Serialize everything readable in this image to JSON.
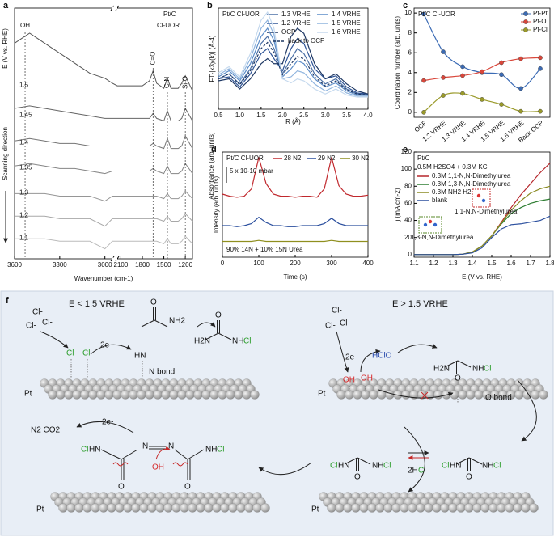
{
  "chart_data": [
    {
      "type": "line",
      "panel": "a",
      "title": "Pt/C",
      "subtitle": "Cl-UOR",
      "x_label": "Wavenumber (cm-1)",
      "y_label": "E (V vs. RHE)",
      "y2_label": "Absorbance (arb. units)",
      "side_label": "Scanning direction",
      "legend": "inline",
      "x": [
        3600,
        3500,
        3400,
        3300,
        3200,
        3100,
        3000,
        2950,
        2150,
        1900,
        1800,
        1700,
        1650,
        1600,
        1500,
        1450,
        1400,
        1300,
        1250,
        1200,
        1100
      ],
      "xlim": [
        3600,
        1100
      ],
      "xbreak": [
        2950,
        2150
      ],
      "xticks": [
        3600,
        3300,
        3000,
        2100,
        1800,
        1500,
        1200
      ],
      "ylim": [
        0,
        10
      ],
      "series": [
        {
          "name": "1.5",
          "color": "#555555",
          "values": [
            8.6,
            9.0,
            8.6,
            8.2,
            7.8,
            7.4,
            7.2,
            7.0,
            6.9,
            6.9,
            6.9,
            7.1,
            7.5,
            7.0,
            6.8,
            7.2,
            6.8,
            6.8,
            7.0,
            7.3,
            6.7
          ]
        },
        {
          "name": "1.45",
          "color": "#656565",
          "values": [
            6.0,
            6.1,
            6.0,
            5.9,
            5.8,
            5.7,
            5.6,
            5.6,
            5.6,
            5.6,
            5.6,
            5.6,
            5.8,
            5.6,
            5.5,
            5.9,
            5.5,
            5.5,
            5.6,
            6.0,
            5.5
          ]
        },
        {
          "name": "1.4",
          "color": "#757575",
          "values": [
            4.7,
            4.8,
            4.7,
            4.6,
            4.6,
            4.5,
            4.5,
            4.5,
            4.5,
            4.5,
            4.5,
            4.5,
            4.6,
            4.5,
            4.4,
            4.8,
            4.4,
            4.4,
            4.5,
            4.9,
            4.4
          ]
        },
        {
          "name": "1.35",
          "color": "#858585",
          "values": [
            3.7,
            3.8,
            3.7,
            3.6,
            3.6,
            3.5,
            3.4,
            3.5,
            3.5,
            3.5,
            3.5,
            3.5,
            3.6,
            3.5,
            3.4,
            3.7,
            3.4,
            3.4,
            3.5,
            3.8,
            3.4
          ]
        },
        {
          "name": "1.3",
          "color": "#969696",
          "values": [
            2.6,
            2.6,
            2.6,
            2.5,
            2.5,
            2.5,
            2.3,
            2.5,
            2.5,
            2.5,
            2.5,
            2.5,
            2.5,
            2.5,
            2.4,
            2.6,
            2.4,
            2.4,
            2.5,
            2.7,
            2.4
          ]
        },
        {
          "name": "1.2",
          "color": "#a8a8a8",
          "values": [
            1.7,
            1.7,
            1.7,
            1.6,
            1.6,
            1.6,
            1.3,
            1.6,
            1.6,
            1.6,
            1.6,
            1.6,
            1.6,
            1.6,
            1.5,
            1.7,
            1.5,
            1.5,
            1.6,
            1.8,
            1.5
          ]
        },
        {
          "name": "1.1",
          "color": "#bbbbbb",
          "values": [
            0.8,
            0.8,
            0.8,
            0.7,
            0.7,
            0.7,
            0.4,
            0.7,
            0.7,
            0.7,
            0.7,
            0.7,
            0.7,
            0.7,
            0.6,
            0.8,
            0.6,
            0.6,
            0.7,
            0.9,
            0.6
          ]
        }
      ],
      "annotations": [
        {
          "text": "OH",
          "x": 3530
        },
        {
          "text": "C=O",
          "x": 1650
        },
        {
          "text": "C-N",
          "x": 1450
        },
        {
          "text": "Si-O",
          "x": 1200
        }
      ]
    },
    {
      "type": "line",
      "panel": "b",
      "title": "Pt/C Cl-UOR",
      "x_label": "R (Å)",
      "y_label": "FT-|k3χ(k)| (Å-4)",
      "legend": "upper center",
      "x": [
        0.5,
        0.75,
        1.0,
        1.25,
        1.5,
        1.65,
        1.8,
        2.0,
        2.2,
        2.35,
        2.5,
        2.75,
        3.0,
        3.25,
        3.5,
        3.75,
        4.0
      ],
      "xlim": [
        0.5,
        4.0
      ],
      "xticks": [
        0.5,
        {
          "value": 1,
          "label": "1.0"
        },
        1.5,
        {
          "value": 2,
          "label": "2.0"
        },
        2.5,
        {
          "value": 3,
          "label": "3.0"
        },
        3.5,
        {
          "value": 4,
          "label": "4.0"
        }
      ],
      "ylim": [
        0,
        10
      ],
      "series": [
        {
          "name": "1.3 VRHE",
          "color": "#4a6fa5",
          "values": [
            3,
            3.5,
            2.5,
            4,
            6.5,
            7.2,
            6,
            3.5,
            5,
            6,
            5.5,
            3.5,
            2.5,
            3,
            2,
            1.5,
            1.5
          ]
        },
        {
          "name": "1.2 VRHE",
          "color": "#2f5597",
          "values": [
            3,
            3.2,
            2.2,
            3.5,
            5.5,
            6,
            5,
            3.8,
            6,
            7,
            6.5,
            4,
            3,
            3.3,
            2.2,
            1.6,
            1.5
          ]
        },
        {
          "name": "OCP",
          "color": "#1f3864",
          "values": [
            2.8,
            3,
            2,
            3,
            4.5,
            5,
            4.5,
            4.5,
            7.2,
            8,
            7.5,
            4.5,
            3,
            3.5,
            2.5,
            1.8,
            1.5
          ]
        },
        {
          "name": "1.4 VRHE",
          "color": "#5b8cc8",
          "values": [
            3.2,
            3.8,
            2.8,
            4.5,
            7.2,
            8,
            6.8,
            3.2,
            4,
            4.8,
            4.5,
            3,
            2.2,
            2.6,
            1.8,
            1.4,
            1.4
          ]
        },
        {
          "name": "1.5 VRHE",
          "color": "#8fb4de",
          "values": [
            3.4,
            4,
            3,
            5,
            8,
            8.8,
            7.4,
            3,
            3.2,
            3.8,
            3.6,
            2.5,
            1.8,
            2.3,
            1.6,
            1.3,
            1.3
          ]
        },
        {
          "name": "1.6 VRHE",
          "color": "#c5d9ee",
          "values": [
            3.6,
            4.2,
            3.2,
            5.5,
            8.8,
            9.6,
            8,
            3,
            2.6,
            3,
            2.8,
            2,
            1.5,
            2,
            1.4,
            1.2,
            1.2
          ]
        },
        {
          "name": "back  to OCP",
          "color": "#1f3864",
          "dash": true,
          "values": [
            3,
            3.5,
            2.4,
            3.8,
            6,
            6.6,
            5.6,
            3.4,
            4.5,
            5.2,
            5,
            3.2,
            2.3,
            2.8,
            1.9,
            1.5,
            1.4
          ]
        }
      ]
    },
    {
      "type": "line",
      "panel": "c",
      "title": "Pt/C Cl-UOR",
      "y_label": "Coordination number (arb. units)",
      "legend": "upper right",
      "markers": true,
      "smooth": true,
      "categories": [
        "OCP",
        "1.2 VRHE",
        "1.3 VRHE",
        "1.4 VRHE",
        "1.5 VRHE",
        "1.6 VRHE",
        "Back OCP"
      ],
      "ylim": [
        -0.5,
        10.5
      ],
      "yticks": [
        0,
        2,
        4,
        6,
        8,
        10
      ],
      "series": [
        {
          "name": "Pt-Pt",
          "color": "#3b6bb5",
          "values": [
            9.9,
            6.1,
            4.6,
            4.0,
            3.8,
            2.4,
            4.4
          ]
        },
        {
          "name": "Pt-O",
          "color": "#d9473b",
          "values": [
            3.2,
            3.5,
            3.7,
            4.1,
            5.0,
            5.4,
            5.5
          ]
        },
        {
          "name": "Pt-Cl",
          "color": "#9a9a2a",
          "values": [
            0,
            1.7,
            1.9,
            1.3,
            0.8,
            0.1,
            0.1
          ]
        }
      ]
    },
    {
      "type": "line",
      "panel": "d",
      "title": "Pt/C Cl-UOR",
      "x_label": "Time (s)",
      "y_label": "Intensity (arb. units)",
      "legend": "top",
      "scale_bar": "5 x 10-10 mbar",
      "note": "90% 14N + 10% 15N Urea",
      "x": [
        0,
        20,
        40,
        60,
        80,
        100,
        120,
        140,
        160,
        180,
        200,
        220,
        240,
        260,
        280,
        300,
        320,
        340,
        360,
        380,
        400
      ],
      "xlim": [
        0,
        400
      ],
      "xticks": [
        0,
        100,
        200,
        300,
        400
      ],
      "ylim": [
        0,
        10
      ],
      "series": [
        {
          "name": "28 N2",
          "color": "#c0282d",
          "values": [
            6,
            5.8,
            5.7,
            5.8,
            6.5,
            9.5,
            7,
            6,
            5.8,
            5.8,
            5.7,
            5.8,
            5.8,
            5.7,
            6.5,
            9.5,
            6.8,
            6,
            5.8,
            5.8,
            5.9
          ]
        },
        {
          "name": "29 N2",
          "color": "#2b4f9e",
          "values": [
            3,
            3,
            2.9,
            3,
            3.2,
            3.8,
            3.3,
            3,
            3,
            2.9,
            2.9,
            3,
            3,
            3,
            3.2,
            3.7,
            3.2,
            3,
            3,
            3,
            3
          ]
        },
        {
          "name": "30 N2",
          "color": "#8f8f1f",
          "values": [
            1.5,
            1.5,
            1.5,
            1.5,
            1.5,
            1.6,
            1.5,
            1.5,
            1.5,
            1.5,
            1.5,
            1.5,
            1.5,
            1.5,
            1.5,
            1.6,
            1.5,
            1.5,
            1.5,
            1.5,
            1.5
          ]
        }
      ]
    },
    {
      "type": "line",
      "panel": "e",
      "legend_title": [
        "Pt/C",
        "0.5M H2SO4 + 0.3M KCl"
      ],
      "x_label": "E (V vs. RHE)",
      "y_label": "j (mA cm-2)",
      "legend": "upper left",
      "x": [
        1.1,
        1.2,
        1.3,
        1.35,
        1.4,
        1.45,
        1.5,
        1.55,
        1.6,
        1.65,
        1.7,
        1.75,
        1.8
      ],
      "xlim": [
        1.1,
        1.8
      ],
      "xticks": [
        1.1,
        1.2,
        1.3,
        1.4,
        1.5,
        1.6,
        1.7,
        1.8
      ],
      "ylim": [
        -3,
        120
      ],
      "yticks": [
        0,
        20,
        40,
        60,
        80,
        100,
        120
      ],
      "series": [
        {
          "name": "0.3M 1,1-N,N-Dimethylurea",
          "color": "#b5252a",
          "values": [
            0,
            0,
            0,
            0.5,
            3,
            10,
            22,
            38,
            55,
            70,
            83,
            96,
            107
          ]
        },
        {
          "name": "0.3M 1,3-N,N-Dimethylurea",
          "color": "#2e7d32",
          "values": [
            0,
            0,
            0,
            0.5,
            3,
            10,
            22,
            36,
            48,
            55,
            60,
            63,
            65
          ]
        },
        {
          "name": "0.3M NH2 H2O",
          "color": "#8a8a22",
          "values": [
            0,
            0,
            0,
            0.5,
            3,
            10,
            22,
            37,
            52,
            63,
            72,
            77,
            80
          ]
        },
        {
          "name": "blank",
          "color": "#2b4f9e",
          "values": [
            0,
            0,
            0,
            0.5,
            2,
            8,
            20,
            30,
            35,
            36,
            38,
            40,
            45
          ]
        }
      ],
      "annotations": [
        {
          "text": "1,1-N,N-Dimethylurea"
        },
        {
          "text": "1,3-N,N-Dimethylurea"
        }
      ]
    }
  ],
  "scheme": {
    "labels": [
      "f",
      "E < 1.5 VRHE",
      "E > 1.5 VRHE",
      "Cl-",
      "Cl-",
      "Cl-",
      "Cl",
      "Cl",
      "2e-",
      "O",
      "NH2",
      "HN",
      "N bond",
      "H2N",
      "O",
      "NH",
      "Cl",
      "Pt",
      "Cl-",
      "Cl-",
      "Cl-",
      "2e-",
      "HClO",
      "OH",
      "OH",
      "H2N",
      "O",
      "NH",
      "Cl",
      "O bond",
      "Pt",
      "2H",
      "Cl",
      "Cl",
      "HN",
      "NH",
      "Cl",
      "O",
      "Cl",
      "HN",
      "NH",
      "Cl",
      "O",
      "Pt",
      "N2 CO2",
      "2e-",
      "Cl",
      "HN",
      "N",
      "N",
      "NH",
      "Cl",
      "O",
      "O",
      "OH",
      "Pt"
    ]
  }
}
